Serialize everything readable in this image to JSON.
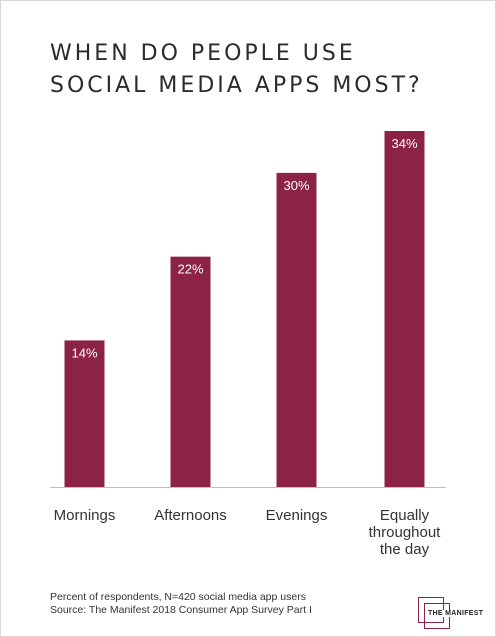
{
  "title_lines": [
    "WHEN DO PEOPLE USE",
    "SOCIAL MEDIA APPS MOST?"
  ],
  "chart_data": {
    "type": "bar",
    "categories": [
      [
        "Mornings"
      ],
      [
        "Afternoons"
      ],
      [
        "Evenings"
      ],
      [
        "Equally",
        "throughout",
        "the day"
      ]
    ],
    "values": [
      14,
      22,
      30,
      34
    ],
    "value_labels": [
      "14%",
      "22%",
      "30%",
      "34%"
    ],
    "ylim": [
      0,
      34
    ],
    "grid": false,
    "bar_color": "#8c2346"
  },
  "footnote": {
    "line1": "Percent of respondents, N=420 social media app users",
    "line2": "Source: The Manifest 2018 Consumer App Survey Part I"
  },
  "logo": {
    "text": "THE MANIFEST",
    "color": "#8c2346"
  }
}
